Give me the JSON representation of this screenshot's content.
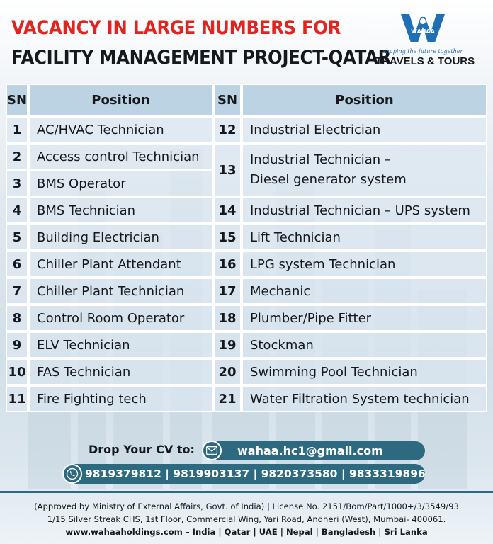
{
  "header": {
    "title_line1": "VACANCY IN LARGE NUMBERS FOR",
    "title_line2": "FACILITY MANAGEMENT PROJECT-QATAR",
    "title_line1_color": "#e3231d"
  },
  "logo": {
    "name": "WAHAA",
    "tagline": "shaping the future together",
    "subtitle": "TRAVELS & TOURS"
  },
  "table": {
    "headers": {
      "sn": "SN",
      "position": "Position"
    },
    "rows": [
      {
        "sn": "1",
        "position": "AC/HVAC Technician"
      },
      {
        "sn": "2",
        "position": "Access control Technician"
      },
      {
        "sn": "3",
        "position": "BMS Operator"
      },
      {
        "sn": "4",
        "position": "BMS Technician"
      },
      {
        "sn": "5",
        "position": "Building Electrician"
      },
      {
        "sn": "6",
        "position": "Chiller Plant Attendant"
      },
      {
        "sn": "7",
        "position": "Chiller Plant Technician"
      },
      {
        "sn": "8",
        "position": "Control Room Operator"
      },
      {
        "sn": "9",
        "position": "ELV Technician"
      },
      {
        "sn": "10",
        "position": "FAS Technician"
      },
      {
        "sn": "11",
        "position": "Fire Fighting tech"
      },
      {
        "sn": "12",
        "position": "Industrial Electrician"
      },
      {
        "sn": "13",
        "position_line1": "Industrial Technician –",
        "position_line2": "Diesel generator system"
      },
      {
        "sn": "14",
        "position": "Industrial Technician – UPS system"
      },
      {
        "sn": "15",
        "position": "Lift Technician"
      },
      {
        "sn": "16",
        "position": "LPG system Technician"
      },
      {
        "sn": "17",
        "position": "Mechanic"
      },
      {
        "sn": "18",
        "position": "Plumber/Pipe Fitter"
      },
      {
        "sn": "19",
        "position": "Stockman"
      },
      {
        "sn": "20",
        "position": "Swimming Pool Technician"
      },
      {
        "sn": "21",
        "position": "Water Filtration System technician"
      }
    ]
  },
  "contact": {
    "cv_label": "Drop Your CV to:",
    "email": "wahaa.hc1@gmail.com",
    "phones": "9819379812 | 9819903137 | 9820373580 | 9833319896",
    "mail_icon": "envelope-icon",
    "phone_icon": "whatsapp-phone-icon",
    "accent_color": "#2d6a80"
  },
  "footer": {
    "line1": "(Approved by Ministry of External Affairs, Govt. of India) | License No. 2151/Bom/Part/1000+/3/3549/93",
    "line2": "1/15 Silver Streak CHS, 1st Floor, Commercial Wing, Yari Road, Andheri (West), Mumbai- 400061.",
    "line3": "www.wahaaholdings.com – India | Qatar | UAE | Nepal | Bangladesh | Sri Lanka"
  }
}
